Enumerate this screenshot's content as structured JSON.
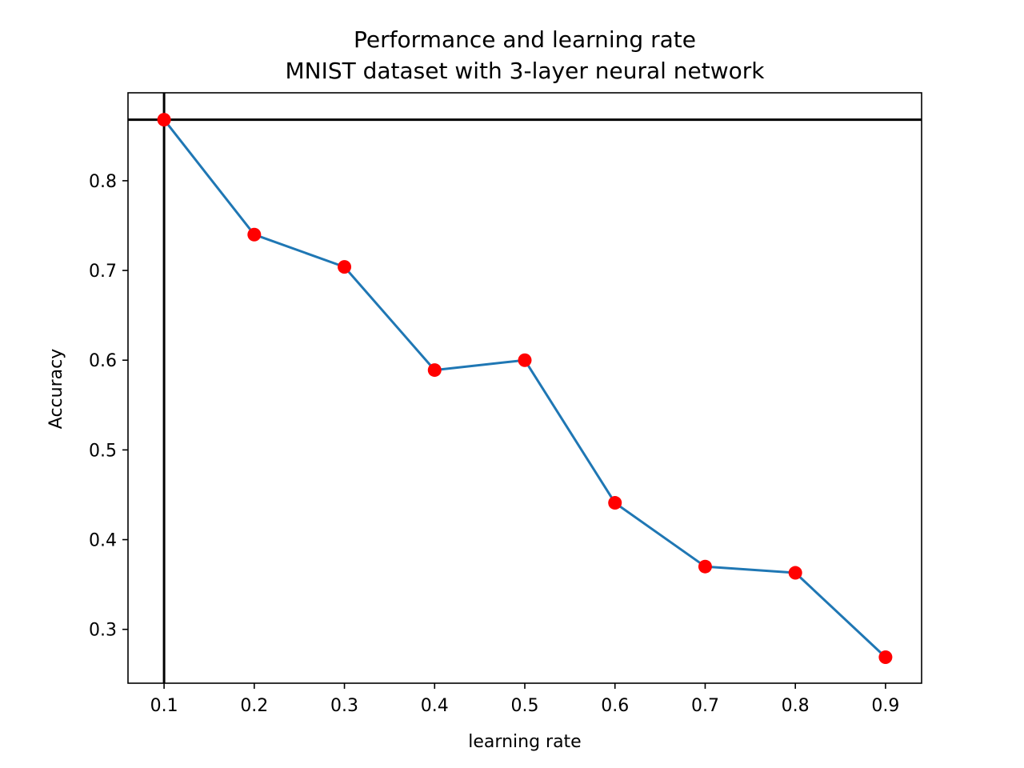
{
  "chart_data": {
    "type": "line",
    "title_line1": "Performance and learning rate",
    "title_line2": "MNIST dataset with 3-layer neural network",
    "xlabel": "learning rate",
    "ylabel": "Accuracy",
    "x": [
      0.1,
      0.2,
      0.3,
      0.4,
      0.5,
      0.6,
      0.7,
      0.8,
      0.9
    ],
    "x_tick_labels": [
      "0.1",
      "0.2",
      "0.3",
      "0.4",
      "0.5",
      "0.6",
      "0.7",
      "0.8",
      "0.9"
    ],
    "y": [
      0.868,
      0.74,
      0.704,
      0.589,
      0.6,
      0.441,
      0.37,
      0.363,
      0.269
    ],
    "y_ticks": [
      0.3,
      0.4,
      0.5,
      0.6,
      0.7,
      0.8
    ],
    "y_tick_labels": [
      "0.3",
      "0.4",
      "0.5",
      "0.6",
      "0.7",
      "0.8"
    ],
    "xlim": [
      0.06,
      0.94
    ],
    "ylim": [
      0.24,
      0.898
    ],
    "reference_lines": {
      "vertical_x": 0.1,
      "horizontal_y": 0.868
    },
    "grid": false,
    "legend": "none",
    "colors": {
      "line": "#1f77b4",
      "markers": "#ff0000",
      "reference_lines": "#000000",
      "axes": "#000000"
    }
  }
}
